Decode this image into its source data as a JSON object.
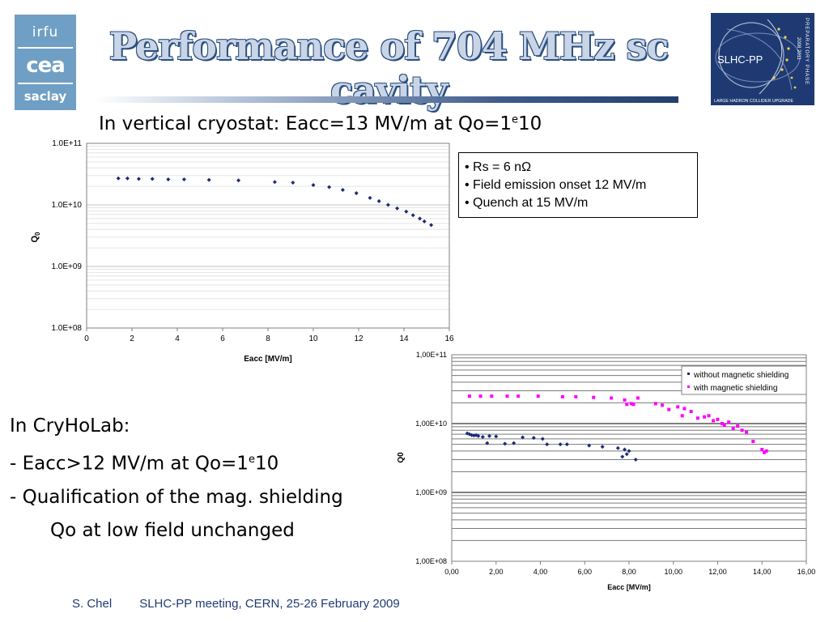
{
  "slide": {
    "title": "Performance of 704 MHz sc cavity",
    "logo_left": {
      "line1": "irfu",
      "line2": "cea",
      "line3": "saclay"
    },
    "logo_right": {
      "name": "SLHC-PP",
      "caption": "LARGE HADRON COLLIDER UPGRADE",
      "side_text": "PREPARATORY PHASE",
      "years": "2008 2011"
    },
    "subtitle": {
      "text": "In vertical cryostat: Eacc=13 MV/m at Qo=1",
      "sup": "e",
      "tail": "10"
    },
    "infobox": [
      "• Rs = 6 nΩ",
      "• Field emission onset 12 MV/m",
      "• Quench at 15 MV/m"
    ],
    "cryholab": {
      "line1": "In CryHoLab:",
      "line2_pre": "- Eacc>12 MV/m at Qo=1",
      "line2_sup": "e",
      "line2_tail": "10",
      "line3": "- Qualification of the mag. shielding",
      "line4": "Qo at low field unchanged"
    },
    "footer": {
      "author": "S. Chel",
      "event": "SLHC-PP meeting, CERN, 25-26 February 2009"
    }
  },
  "colors": {
    "title_blue": "#2b4f7f",
    "series_blue": "#1b2a7a",
    "series_magenta": "#ff00ff",
    "logo_bg": "#6f9fc4",
    "slhc_bg": "#1f3a73"
  },
  "chart_data": [
    {
      "type": "scatter",
      "title": "",
      "xlabel": "Eacc [MV/m]",
      "ylabel": "Q0",
      "xlim": [
        0,
        16
      ],
      "ylim": [
        100000000.0,
        100000000000.0
      ],
      "y_scale": "log",
      "x_ticks": [
        "0",
        "2",
        "4",
        "6",
        "8",
        "10",
        "12",
        "14",
        "16"
      ],
      "y_ticks": [
        "1.0E+08",
        "1.0E+09",
        "1.0E+10",
        "1.0E+11"
      ],
      "grid": true,
      "series": [
        {
          "name": "",
          "color": "#1b2a7a",
          "x": [
            1.4,
            1.8,
            2.3,
            2.9,
            3.6,
            4.3,
            5.4,
            6.7,
            8.3,
            9.1,
            10.0,
            10.7,
            11.3,
            11.9,
            12.5,
            12.9,
            13.3,
            13.7,
            14.1,
            14.4,
            14.7,
            14.9,
            15.2
          ],
          "y": [
            27000000000.0,
            27000000000.0,
            26500000000.0,
            26500000000.0,
            26000000000.0,
            26000000000.0,
            25500000000.0,
            25000000000.0,
            23500000000.0,
            23000000000.0,
            21000000000.0,
            19500000000.0,
            17500000000.0,
            15500000000.0,
            13000000000.0,
            11500000000.0,
            10000000000.0,
            8800000000.0,
            7800000000.0,
            6800000000.0,
            6000000000.0,
            5400000000.0,
            4700000000.0
          ]
        }
      ]
    },
    {
      "type": "scatter",
      "title": "",
      "xlabel": "Eacc [MV/m]",
      "ylabel": "Q0",
      "xlim": [
        0,
        16
      ],
      "ylim": [
        100000000.0,
        100000000000.0
      ],
      "y_scale": "log",
      "x_ticks": [
        "0,00",
        "2,00",
        "4,00",
        "6,00",
        "8,00",
        "10,00",
        "12,00",
        "14,00",
        "16,00"
      ],
      "y_ticks": [
        "1,00E+08",
        "1,00E+09",
        "1,00E+10",
        "1,00E+11"
      ],
      "grid": true,
      "legend_position": "top-right",
      "series": [
        {
          "name": "without magnetic shielding",
          "color": "#1b2a7a",
          "x": [
            0.7,
            0.8,
            0.9,
            1.0,
            1.1,
            1.2,
            1.4,
            1.6,
            1.7,
            2.0,
            2.4,
            2.8,
            3.2,
            3.7,
            4.1,
            4.3,
            4.9,
            5.2,
            6.2,
            6.8,
            7.5,
            7.8,
            7.9,
            8.0,
            7.7,
            8.3
          ],
          "y": [
            7200000000.0,
            7000000000.0,
            6800000000.0,
            6700000000.0,
            6800000000.0,
            6600000000.0,
            6400000000.0,
            5200000000.0,
            6600000000.0,
            6500000000.0,
            5100000000.0,
            5200000000.0,
            6300000000.0,
            6200000000.0,
            6000000000.0,
            5000000000.0,
            5000000000.0,
            5000000000.0,
            4800000000.0,
            4600000000.0,
            4400000000.0,
            4200000000.0,
            3600000000.0,
            4000000000.0,
            3300000000.0,
            3000000000.0
          ]
        },
        {
          "name": "with magnetic shielding",
          "color": "#ff00ff",
          "x": [
            0.8,
            1.3,
            1.8,
            2.5,
            3.0,
            3.9,
            5.0,
            5.6,
            6.4,
            7.2,
            7.8,
            7.9,
            8.1,
            8.2,
            8.4,
            9.2,
            9.5,
            9.8,
            10.2,
            10.4,
            10.5,
            10.8,
            11.1,
            11.4,
            11.6,
            11.8,
            12.0,
            12.2,
            12.3,
            12.5,
            12.7,
            12.9,
            13.1,
            13.3,
            13.6,
            14.0,
            14.1,
            14.2
          ],
          "y": [
            25000000000.0,
            25000000000.0,
            25000000000.0,
            25000000000.0,
            25000000000.0,
            25000000000.0,
            24500000000.0,
            24500000000.0,
            24000000000.0,
            23500000000.0,
            22000000000.0,
            19000000000.0,
            19500000000.0,
            19000000000.0,
            23500000000.0,
            19500000000.0,
            18500000000.0,
            16000000000.0,
            17500000000.0,
            13000000000.0,
            16500000000.0,
            15000000000.0,
            12000000000.0,
            12500000000.0,
            13000000000.0,
            11000000000.0,
            11500000000.0,
            10000000000.0,
            9500000000.0,
            10500000000.0,
            8500000000.0,
            9200000000.0,
            8000000000.0,
            7500000000.0,
            5500000000.0,
            4200000000.0,
            3800000000.0,
            4000000000.0
          ]
        }
      ]
    }
  ]
}
